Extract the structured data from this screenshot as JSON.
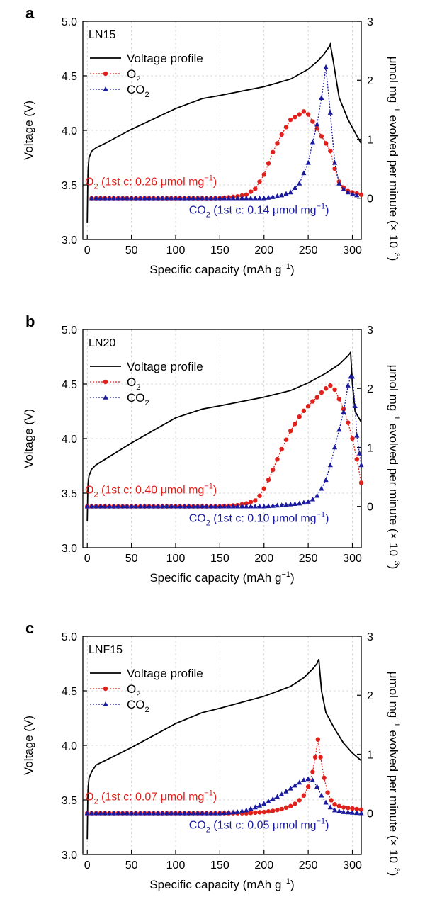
{
  "chart_data": [
    {
      "type": "line",
      "panel": "a",
      "sample": "LN15",
      "xlabel": "Specific capacity (mAh g⁻¹)",
      "ylabel_left": "Voltage (V)",
      "ylabel_right": "μmol mg⁻¹ evolved per minute (× 10⁻³)",
      "xlim": [
        -5,
        310
      ],
      "ylim_left": [
        3.0,
        5.0
      ],
      "ylim_right": [
        -0.7,
        3.0
      ],
      "xticks": [
        0,
        50,
        100,
        150,
        200,
        250,
        300
      ],
      "yticks_left": [
        3.0,
        3.5,
        4.0,
        4.5,
        5.0
      ],
      "yticks_right": [
        0,
        1,
        2,
        3
      ],
      "legend": [
        "Voltage profile",
        "O2",
        "CO2"
      ],
      "legend_position": "top-left",
      "annotations": [
        {
          "series": "O2",
          "text": "O2 (1st c: 0.26 μmol mg−1)",
          "color": "#e0201b"
        },
        {
          "series": "CO2",
          "text": "CO2 (1st c: 0.14 μmol mg−1)",
          "color": "#1a1a9e"
        }
      ],
      "series": [
        {
          "name": "Voltage profile",
          "axis": "left",
          "color": "#000000",
          "x": [
            0,
            0.5,
            1,
            2,
            5,
            10,
            20,
            50,
            100,
            130,
            150,
            200,
            230,
            250,
            260,
            268,
            274,
            275,
            278,
            285,
            295,
            305,
            310
          ],
          "y": [
            3.15,
            3.5,
            3.65,
            3.75,
            3.81,
            3.84,
            3.88,
            4.01,
            4.2,
            4.29,
            4.32,
            4.4,
            4.47,
            4.56,
            4.63,
            4.7,
            4.77,
            4.79,
            4.65,
            4.3,
            4.1,
            3.95,
            3.88
          ]
        },
        {
          "name": "O2",
          "axis": "right",
          "color": "#e0201b",
          "x": [
            5,
            50,
            100,
            150,
            170,
            180,
            190,
            200,
            210,
            220,
            230,
            240,
            245,
            250,
            255,
            260,
            265,
            270,
            275,
            280,
            285,
            290,
            295,
            300,
            305,
            310
          ],
          "y": [
            0,
            0,
            0,
            0,
            0.03,
            0.06,
            0.16,
            0.4,
            0.78,
            1.08,
            1.33,
            1.42,
            1.47,
            1.42,
            1.3,
            1.18,
            1.05,
            0.93,
            0.8,
            0.5,
            0.28,
            0.18,
            0.12,
            0.1,
            0.08,
            0.06
          ]
        },
        {
          "name": "CO2",
          "axis": "right",
          "color": "#1a1a9e",
          "x": [
            5,
            100,
            130,
            150,
            180,
            200,
            210,
            220,
            230,
            240,
            250,
            255,
            260,
            265,
            270,
            275,
            280,
            285,
            290,
            295,
            300,
            305
          ],
          "y": [
            0,
            0,
            0,
            0,
            0,
            0,
            0.02,
            0.05,
            0.1,
            0.25,
            0.6,
            0.95,
            1.25,
            1.7,
            2.22,
            1.45,
            0.6,
            0.25,
            0.15,
            0.1,
            0.07,
            0.05
          ]
        }
      ]
    },
    {
      "type": "line",
      "panel": "b",
      "sample": "LN20",
      "xlabel": "Specific capacity (mAh g⁻¹)",
      "ylabel_left": "Voltage (V)",
      "ylabel_right": "μmol mg⁻¹ evolved per minute (× 10⁻³)",
      "xlim": [
        -5,
        310
      ],
      "ylim_left": [
        3.0,
        5.0
      ],
      "ylim_right": [
        -0.7,
        3.0
      ],
      "xticks": [
        0,
        50,
        100,
        150,
        200,
        250,
        300
      ],
      "yticks_left": [
        3.0,
        3.5,
        4.0,
        4.5,
        5.0
      ],
      "yticks_right": [
        0,
        1,
        2,
        3
      ],
      "legend": [
        "Voltage profile",
        "O2",
        "CO2"
      ],
      "legend_position": "top-left",
      "annotations": [
        {
          "series": "O2",
          "text": "O2 (1st c: 0.40 μmol mg−1)",
          "color": "#e0201b"
        },
        {
          "series": "CO2",
          "text": "CO2 (1st c: 0.10 μmol mg−1)",
          "color": "#1a1a9e"
        }
      ],
      "series": [
        {
          "name": "Voltage profile",
          "axis": "left",
          "color": "#000000",
          "x": [
            0,
            0.5,
            1,
            2,
            5,
            10,
            20,
            50,
            100,
            130,
            150,
            200,
            230,
            250,
            270,
            285,
            295,
            298,
            300,
            303,
            310
          ],
          "y": [
            3.24,
            3.5,
            3.6,
            3.66,
            3.72,
            3.76,
            3.81,
            3.96,
            4.19,
            4.27,
            4.3,
            4.38,
            4.44,
            4.51,
            4.6,
            4.68,
            4.76,
            4.79,
            4.5,
            4.25,
            4.15
          ]
        },
        {
          "name": "O2",
          "axis": "right",
          "color": "#e0201b",
          "x": [
            0,
            50,
            100,
            150,
            170,
            180,
            190,
            195,
            200,
            205,
            210,
            215,
            220,
            225,
            230,
            235,
            240,
            245,
            250,
            255,
            260,
            265,
            270,
            275,
            280,
            285,
            290,
            295,
            300,
            305,
            310
          ],
          "y": [
            0,
            0,
            0,
            0,
            0.02,
            0.05,
            0.1,
            0.18,
            0.3,
            0.45,
            0.62,
            0.8,
            0.97,
            1.13,
            1.28,
            1.4,
            1.52,
            1.62,
            1.7,
            1.78,
            1.85,
            1.93,
            2.0,
            2.05,
            1.98,
            1.82,
            1.65,
            1.42,
            1.15,
            0.8,
            0.4
          ]
        },
        {
          "name": "CO2",
          "axis": "right",
          "color": "#1a1a9e",
          "x": [
            0,
            100,
            150,
            200,
            220,
            240,
            250,
            255,
            260,
            265,
            270,
            275,
            280,
            285,
            290,
            295,
            298,
            300,
            303,
            305,
            308,
            310
          ],
          "y": [
            0,
            0,
            0,
            0,
            0.02,
            0.05,
            0.08,
            0.12,
            0.18,
            0.3,
            0.45,
            0.7,
            1.0,
            1.3,
            1.6,
            2.05,
            2.2,
            2.2,
            1.7,
            1.2,
            0.9,
            0.7
          ]
        }
      ]
    },
    {
      "type": "line",
      "panel": "c",
      "sample": "LNF15",
      "xlabel": "Specific capacity (mAh g⁻¹)",
      "ylabel_left": "Voltage (V)",
      "ylabel_right": "μmol mg⁻¹ evolved per minute (× 10⁻³)",
      "xlim": [
        -5,
        310
      ],
      "ylim_left": [
        3.0,
        5.0
      ],
      "ylim_right": [
        -0.7,
        3.0
      ],
      "xticks": [
        0,
        50,
        100,
        150,
        200,
        250,
        300
      ],
      "yticks_left": [
        3.0,
        3.5,
        4.0,
        4.5,
        5.0
      ],
      "yticks_right": [
        0,
        1,
        2,
        3
      ],
      "legend": [
        "Voltage profile",
        "O2",
        "CO2"
      ],
      "legend_position": "top-left",
      "annotations": [
        {
          "series": "O2",
          "text": "O2 (1st c: 0.07 μmol mg−1)",
          "color": "#e0201b"
        },
        {
          "series": "CO2",
          "text": "CO2 (1st c: 0.05 μmol mg−1)",
          "color": "#1a1a9e"
        }
      ],
      "series": [
        {
          "name": "Voltage profile",
          "axis": "left",
          "color": "#000000",
          "x": [
            0,
            0.5,
            1,
            2,
            5,
            10,
            20,
            50,
            100,
            130,
            150,
            200,
            230,
            245,
            255,
            260,
            262,
            265,
            270,
            280,
            290,
            300,
            310
          ],
          "y": [
            3.14,
            3.5,
            3.62,
            3.7,
            3.76,
            3.82,
            3.86,
            3.98,
            4.2,
            4.3,
            4.34,
            4.45,
            4.54,
            4.62,
            4.7,
            4.75,
            4.79,
            4.5,
            4.3,
            4.15,
            4.02,
            3.93,
            3.86
          ]
        },
        {
          "name": "O2",
          "axis": "right",
          "color": "#e0201b",
          "x": [
            0,
            50,
            100,
            150,
            180,
            200,
            210,
            220,
            230,
            235,
            240,
            245,
            250,
            255,
            258,
            261,
            264,
            268,
            272,
            276,
            280,
            285,
            290,
            295,
            300,
            305,
            310
          ],
          "y": [
            0,
            0,
            0,
            0,
            0,
            0.02,
            0.04,
            0.07,
            0.12,
            0.16,
            0.22,
            0.3,
            0.45,
            0.7,
            0.95,
            1.25,
            0.95,
            0.6,
            0.35,
            0.22,
            0.15,
            0.12,
            0.1,
            0.09,
            0.08,
            0.07,
            0.06
          ]
        },
        {
          "name": "CO2",
          "axis": "right",
          "color": "#1a1a9e",
          "x": [
            0,
            100,
            150,
            170,
            180,
            190,
            200,
            210,
            220,
            230,
            240,
            245,
            250,
            255,
            260,
            265,
            270,
            275,
            280,
            290,
            300,
            310
          ],
          "y": [
            0,
            0,
            0,
            0.02,
            0.05,
            0.1,
            0.16,
            0.24,
            0.32,
            0.42,
            0.52,
            0.56,
            0.58,
            0.56,
            0.45,
            0.3,
            0.18,
            0.1,
            0.05,
            0.02,
            0.01,
            0
          ]
        }
      ]
    }
  ]
}
